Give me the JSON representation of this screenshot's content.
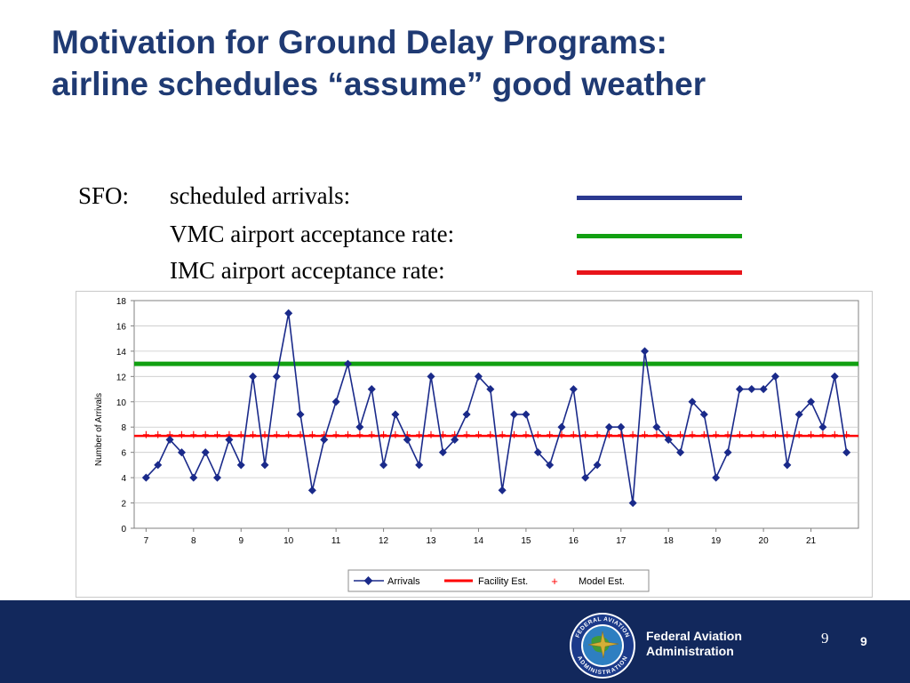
{
  "slide": {
    "title_line1": "Motivation for Ground Delay Programs:",
    "title_line2": "airline schedules “assume” good weather"
  },
  "legend_text": {
    "sfo": "SFO:",
    "scheduled": "scheduled arrivals:",
    "vmc": "VMC airport acceptance rate:",
    "imc": "IMC airport acceptance rate:",
    "colors": {
      "scheduled": "#2b3990",
      "vmc": "#12a012",
      "imc": "#e8141a"
    }
  },
  "chart_data": {
    "type": "line",
    "ylabel": "Number of Arrivals",
    "xlabel": "",
    "ylim": [
      0,
      18
    ],
    "yticks": [
      "0",
      "2",
      "4",
      "6",
      "8",
      "10",
      "12",
      "14",
      "16",
      "18"
    ],
    "xticks": [
      "7",
      "8",
      "9",
      "10",
      "11",
      "12",
      "13",
      "14",
      "15",
      "16",
      "17",
      "18",
      "19",
      "20",
      "21"
    ],
    "x_start": 7,
    "x_step": 0.25,
    "x_end": 22,
    "series": [
      {
        "name": "Arrivals",
        "color": "#1a2a8a",
        "values": [
          4,
          5,
          7,
          6,
          4,
          6,
          4,
          7,
          5,
          12,
          5,
          12,
          17,
          9,
          3,
          7,
          10,
          13,
          8,
          11,
          5,
          9,
          7,
          5,
          12,
          6,
          7,
          9,
          12,
          11,
          3,
          9,
          9,
          6,
          5,
          8,
          11,
          4,
          5,
          8,
          8,
          2,
          14,
          8,
          7,
          6,
          10,
          9,
          4,
          6,
          11,
          11,
          11,
          12,
          5,
          9,
          10,
          8,
          12,
          6
        ]
      },
      {
        "name": "Facility Est.",
        "color": "#ff0000",
        "value": 7.3
      },
      {
        "name": "Model Est.",
        "color": "#ff0000",
        "value": 7.4
      }
    ],
    "vmc_rate": 13,
    "legend_position": "bottom"
  },
  "footer": {
    "agency_line1": "Federal Aviation",
    "agency_line2": "Administration",
    "page_serif": "9",
    "page_bold": "9",
    "seal_top_text": "FEDERAL AVIATION",
    "seal_bottom_text": "ADMINISTRATION"
  }
}
